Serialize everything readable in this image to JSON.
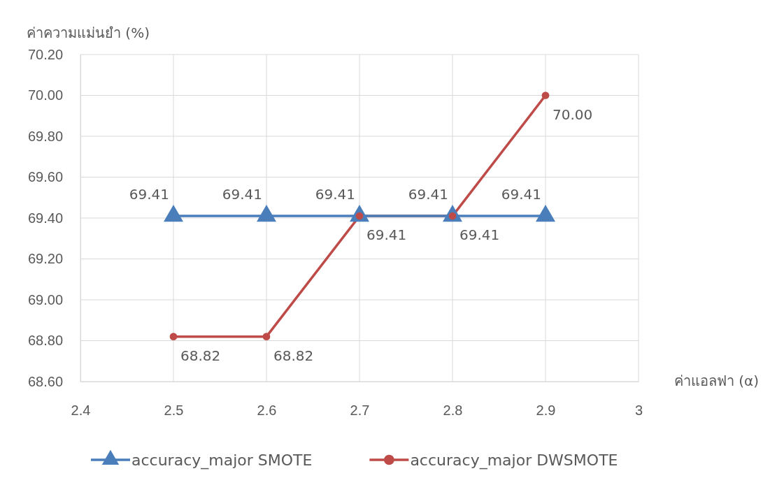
{
  "chart_data": {
    "type": "line",
    "ylabel": "ค่าความแม่นยำ (%)",
    "xlabel": "ค่าแอลฟา (α)",
    "x": [
      2.5,
      2.6,
      2.7,
      2.8,
      2.9
    ],
    "xlim": [
      2.4,
      3
    ],
    "xticks": [
      2.4,
      2.5,
      2.6,
      2.7,
      2.8,
      2.9,
      3
    ],
    "ylim": [
      68.6,
      70.2
    ],
    "yticks": [
      {
        "value": 68.6,
        "label": "68.60"
      },
      {
        "value": 68.8,
        "label": "68.80"
      },
      {
        "value": 69,
        "label": "69.00"
      },
      {
        "value": 69.2,
        "label": "69.20"
      },
      {
        "value": 69.4,
        "label": "69.40"
      },
      {
        "value": 69.6,
        "label": "69.60"
      },
      {
        "value": 69.8,
        "label": "69.80"
      },
      {
        "value": 70,
        "label": "70.00"
      },
      {
        "value": 70.2,
        "label": "70.20"
      }
    ],
    "grid": true,
    "legend": "bottom",
    "series": [
      {
        "name": "accuracy_major SMOTE",
        "color": "#4a7ebb",
        "marker": "triangle",
        "values": [
          69.41,
          69.41,
          69.41,
          69.41,
          69.41
        ],
        "value_labels": [
          "69.41",
          "69.41",
          "69.41",
          "69.41",
          "69.41"
        ]
      },
      {
        "name": "accuracy_major DWSMOTE",
        "color": "#be4b48",
        "marker": "circle",
        "values": [
          68.82,
          68.82,
          69.41,
          69.41,
          70.0
        ],
        "value_labels": [
          "68.82",
          "68.82",
          "69.41",
          "69.41",
          "70.00"
        ]
      }
    ]
  }
}
